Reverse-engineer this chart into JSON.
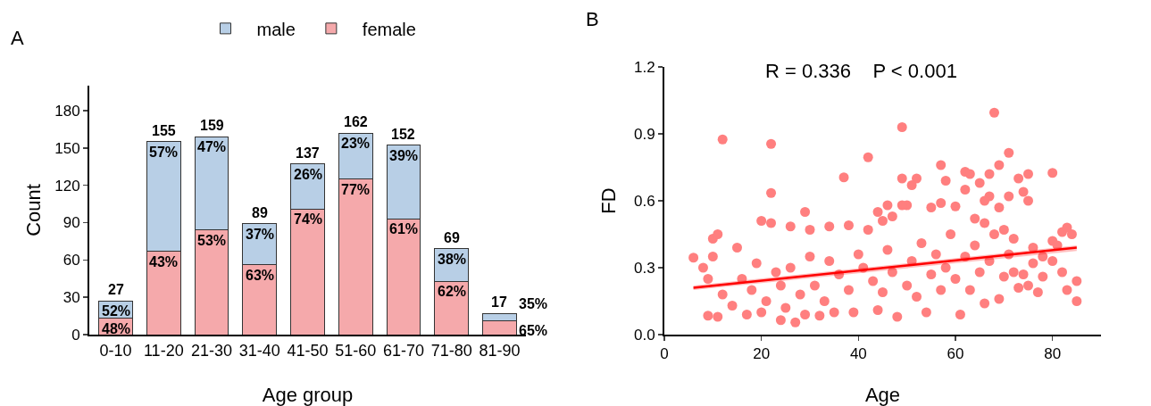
{
  "chart_data": [
    {
      "type": "bar",
      "stacked": true,
      "xlabel": "Age group",
      "ylabel": "Count",
      "annotations": [
        "A",
        {
          "text": "48%",
          "x": "0-10",
          "y": 13
        },
        {
          "text": "43%",
          "x": "11-20",
          "y": 67
        },
        {
          "text": "53%",
          "x": "21-30",
          "y": 84
        },
        {
          "text": "63%",
          "x": "31-40",
          "y": 56
        },
        {
          "text": "74%",
          "x": "41-50",
          "y": 101
        },
        {
          "text": "77%",
          "x": "51-60",
          "y": 125
        },
        {
          "text": "61%",
          "x": "61-70",
          "y": 93
        },
        {
          "text": "62%",
          "x": "71-80",
          "y": 43
        },
        {
          "text": "65%",
          "x": "81-90",
          "y": 11
        },
        {
          "text": "52%",
          "x": "0-10",
          "y": 27
        },
        {
          "text": "57%",
          "x": "11-20",
          "y": 155
        },
        {
          "text": "47%",
          "x": "21-30",
          "y": 159
        },
        {
          "text": "37%",
          "x": "31-40",
          "y": 89
        },
        {
          "text": "26%",
          "x": "41-50",
          "y": 137
        },
        {
          "text": "23%",
          "x": "51-60",
          "y": 162
        },
        {
          "text": "39%",
          "x": "61-70",
          "y": 152
        },
        {
          "text": "38%",
          "x": "71-80",
          "y": 69
        },
        {
          "text": "35%",
          "x": "81-90",
          "y": 17
        }
      ],
      "categories": [
        "0-10",
        "11-20",
        "21-30",
        "31-40",
        "41-50",
        "51-60",
        "61-70",
        "71-80",
        "81-90"
      ],
      "series": [
        {
          "name": "female",
          "color": "#f5a9ab",
          "values": [
            13,
            67,
            84,
            56,
            101,
            125,
            93,
            43,
            11
          ]
        },
        {
          "name": "male",
          "color": "#b8cfe6",
          "values": [
            14,
            88,
            75,
            33,
            36,
            37,
            59,
            26,
            6
          ]
        }
      ],
      "totals": [
        "27",
        "155",
        "159",
        "89",
        "137",
        "162",
        "152",
        "69",
        "17"
      ],
      "ylim": [
        0,
        200
      ],
      "yticks": [
        0,
        30,
        60,
        90,
        120,
        150,
        180
      ],
      "grid": false,
      "legend": "top"
    },
    {
      "type": "scatter",
      "xlabel": "Age",
      "ylabel": "FD",
      "annotations": [
        "B",
        "R = 0.336    P < 0.001"
      ],
      "grid": false,
      "legend": false,
      "xlim": [
        0,
        90
      ],
      "xticks": [
        0,
        20,
        40,
        60,
        80
      ],
      "ylim": [
        0,
        1.2
      ],
      "yticks": [
        {
          "value": 0,
          "label": "0.0"
        },
        0.3,
        0.6,
        0.9,
        1.2
      ],
      "series": [
        {
          "type": "scatter",
          "color": "#ff7f7f",
          "marker": "circle",
          "x": [
            12,
            22,
            22,
            37,
            42,
            49,
            68,
            71,
            69,
            57,
            80,
            62,
            63,
            67,
            75,
            73,
            49,
            52,
            58,
            51,
            65,
            29,
            20,
            44,
            46,
            50,
            49,
            55,
            57,
            60,
            62,
            74,
            71,
            75,
            67,
            66,
            69,
            26,
            22,
            30,
            34,
            38,
            10,
            11,
            42,
            47,
            45,
            64,
            66,
            70,
            72,
            76,
            82,
            84,
            83,
            80,
            85,
            85,
            83,
            82,
            78,
            77,
            48,
            61,
            27,
            24,
            9,
            11,
            17,
            20,
            29,
            32,
            35,
            39,
            44,
            54,
            66,
            69,
            73,
            75,
            6,
            8,
            9,
            10,
            12,
            14,
            15,
            16,
            18,
            19,
            21,
            23,
            24,
            25,
            26,
            28,
            30,
            31,
            33,
            34,
            36,
            38,
            40,
            41,
            43,
            45,
            46,
            47,
            50,
            51,
            52,
            53,
            55,
            56,
            57,
            58,
            59,
            60,
            62,
            63,
            64,
            65,
            67,
            68,
            70,
            71,
            72,
            74,
            76,
            78,
            80,
            81
          ],
          "values": [
            0.875,
            0.855,
            0.635,
            0.705,
            0.795,
            0.93,
            0.995,
            0.815,
            0.76,
            0.76,
            0.725,
            0.73,
            0.72,
            0.72,
            0.72,
            0.7,
            0.7,
            0.7,
            0.69,
            0.67,
            0.68,
            0.55,
            0.51,
            0.55,
            0.58,
            0.58,
            0.58,
            0.57,
            0.59,
            0.575,
            0.65,
            0.64,
            0.62,
            0.6,
            0.62,
            0.6,
            0.57,
            0.485,
            0.5,
            0.47,
            0.485,
            0.49,
            0.43,
            0.45,
            0.47,
            0.53,
            0.51,
            0.52,
            0.5,
            0.47,
            0.43,
            0.39,
            0.46,
            0.45,
            0.48,
            0.42,
            0.24,
            0.15,
            0.2,
            0.28,
            0.26,
            0.19,
            0.08,
            0.09,
            0.055,
            0.065,
            0.085,
            0.08,
            0.09,
            0.1,
            0.09,
            0.085,
            0.1,
            0.1,
            0.11,
            0.1,
            0.14,
            0.16,
            0.21,
            0.22,
            0.345,
            0.3,
            0.25,
            0.35,
            0.18,
            0.13,
            0.39,
            0.25,
            0.2,
            0.32,
            0.15,
            0.28,
            0.22,
            0.12,
            0.3,
            0.18,
            0.35,
            0.22,
            0.15,
            0.33,
            0.27,
            0.2,
            0.36,
            0.3,
            0.24,
            0.19,
            0.38,
            0.28,
            0.22,
            0.33,
            0.17,
            0.41,
            0.27,
            0.36,
            0.2,
            0.3,
            0.45,
            0.25,
            0.35,
            0.2,
            0.4,
            0.28,
            0.33,
            0.45,
            0.26,
            0.36,
            0.28,
            0.27,
            0.32,
            0.35,
            0.33,
            0.4
          ]
        },
        {
          "type": "line",
          "color": "#ff0000",
          "x": [
            6,
            85
          ],
          "values": [
            0.21,
            0.39
          ],
          "lower": [
            0.2,
            0.375
          ],
          "upper": [
            0.22,
            0.4
          ]
        }
      ]
    }
  ]
}
